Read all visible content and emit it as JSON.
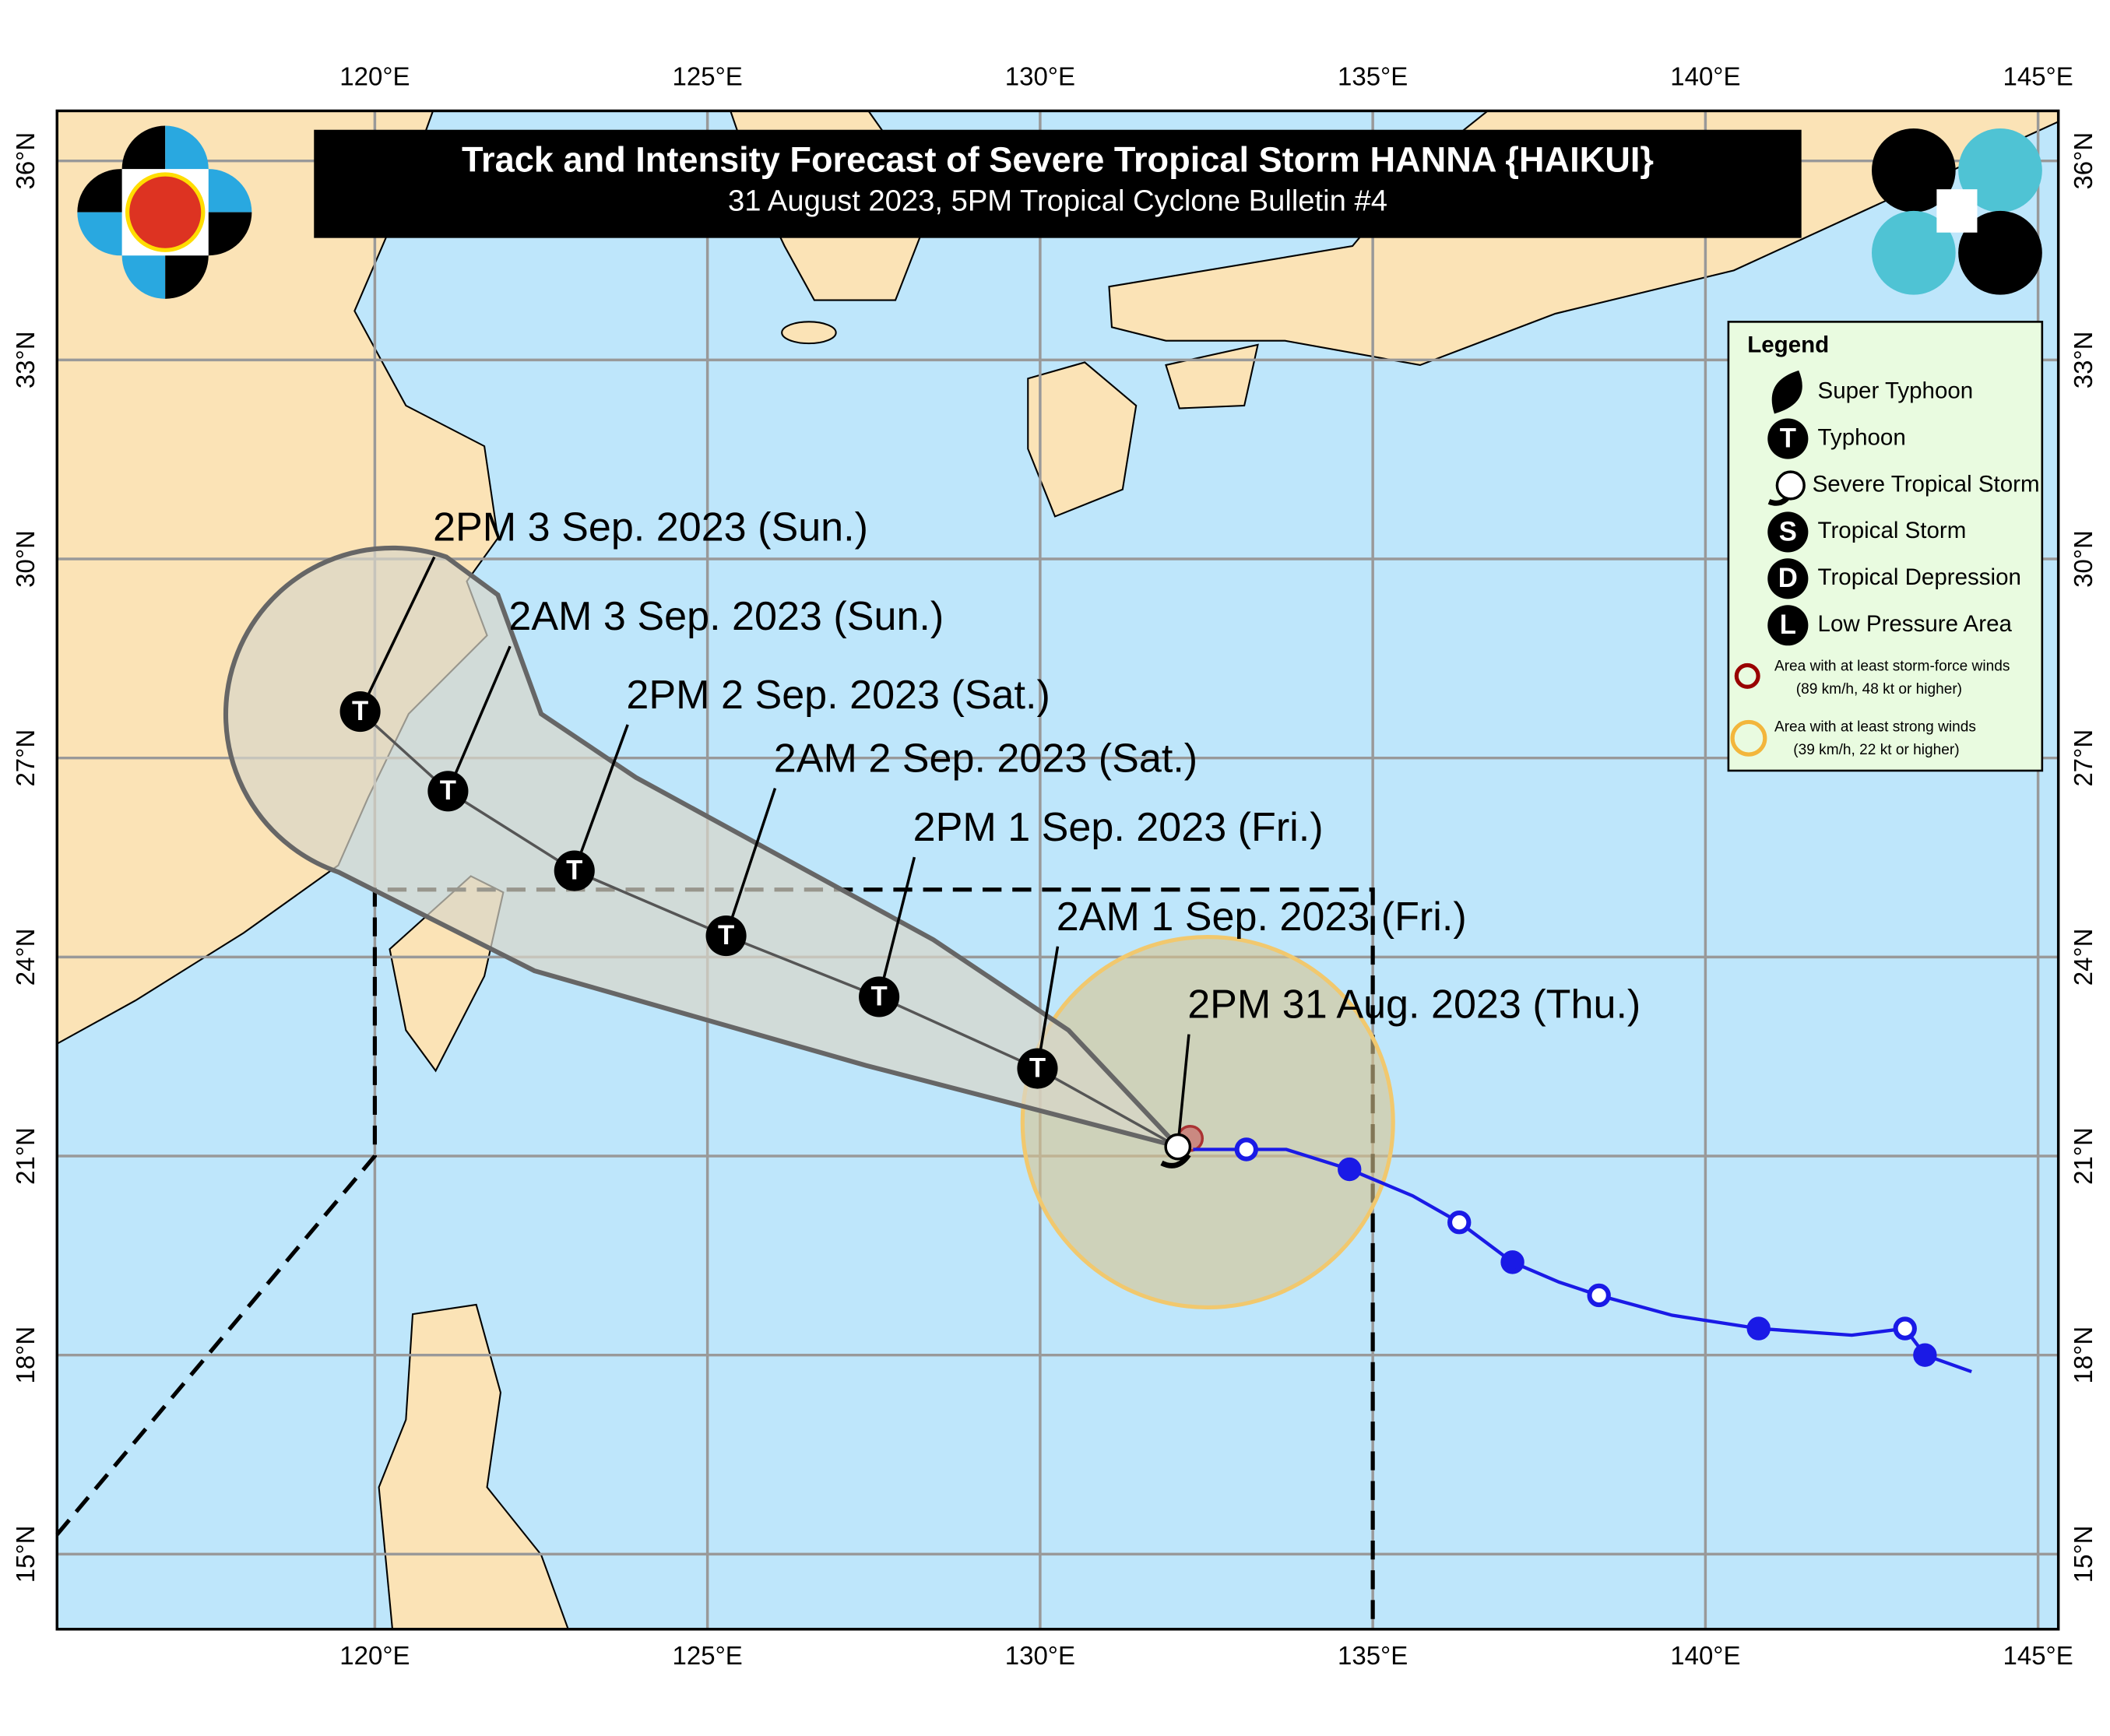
{
  "header": {
    "title": "Track and Intensity Forecast of Severe Tropical Storm HANNA {HAIKUI}",
    "subtitle": "31 August 2023, 5PM Tropical Cyclone Bulletin #4"
  },
  "map": {
    "lon_ticks": [
      {
        "value": 120,
        "label": "120°E"
      },
      {
        "value": 125,
        "label": "125°E"
      },
      {
        "value": 130,
        "label": "130°E"
      },
      {
        "value": 135,
        "label": "135°E"
      },
      {
        "value": 140,
        "label": "140°E"
      },
      {
        "value": 145,
        "label": "145°E"
      }
    ],
    "lat_ticks": [
      {
        "value": 36,
        "label": "36°N"
      },
      {
        "value": 33,
        "label": "33°N"
      },
      {
        "value": 30,
        "label": "30°N"
      },
      {
        "value": 27,
        "label": "27°N"
      },
      {
        "value": 24,
        "label": "24°N"
      },
      {
        "value": 21,
        "label": "21°N"
      },
      {
        "value": 18,
        "label": "18°N"
      },
      {
        "value": 15,
        "label": "15°N"
      }
    ],
    "grid": true,
    "forecast": [
      {
        "label": "2PM 31 Aug. 2023 (Thu.)",
        "lon": 132.07,
        "lat": 21.14
      },
      {
        "label": "2AM 1 Sep. 2023 (Fri.)",
        "lon": 129.96,
        "lat": 22.32,
        "symbol": "T"
      },
      {
        "label": "2PM 1 Sep. 2023 (Fri.)",
        "lon": 127.58,
        "lat": 23.4,
        "symbol": "T"
      },
      {
        "label": "2AM 2 Sep. 2023 (Sat.)",
        "lon": 125.28,
        "lat": 24.32,
        "symbol": "T"
      },
      {
        "label": "2PM 2 Sep. 2023 (Sat.)",
        "lon": 123.0,
        "lat": 25.3,
        "symbol": "T"
      },
      {
        "label": "2AM 3 Sep. 2023 (Sun.)",
        "lon": 121.1,
        "lat": 26.5,
        "symbol": "T"
      },
      {
        "label": "2PM 3 Sep. 2023 (Sun.)",
        "lon": 119.78,
        "lat": 27.7,
        "symbol": "T"
      }
    ],
    "past_track": {
      "color": "#1a1ae6",
      "lon": [
        144.0,
        143.3,
        143.0,
        142.2,
        140.8,
        139.5,
        138.4,
        137.8,
        137.1,
        136.3,
        135.6,
        134.65,
        133.7,
        133.1,
        132.3
      ],
      "lat": [
        17.75,
        18.0,
        18.4,
        18.3,
        18.4,
        18.6,
        18.9,
        19.1,
        19.4,
        20.0,
        20.4,
        20.8,
        21.1,
        21.1,
        21.1
      ],
      "points": [
        {
          "lon": 133.1,
          "lat": 21.1,
          "filled": false
        },
        {
          "lon": 134.65,
          "lat": 20.8,
          "filled": true
        },
        {
          "lon": 136.3,
          "lat": 20.0,
          "filled": false
        },
        {
          "lon": 137.1,
          "lat": 19.4,
          "filled": true
        },
        {
          "lon": 138.4,
          "lat": 18.9,
          "filled": false
        },
        {
          "lon": 140.8,
          "lat": 18.4,
          "filled": true
        },
        {
          "lon": 143.0,
          "lat": 18.4,
          "filled": false
        },
        {
          "lon": 143.3,
          "lat": 18.0,
          "filled": true
        }
      ]
    }
  },
  "legend": {
    "title": "Legend",
    "items": [
      {
        "label": "Super Typhoon"
      },
      {
        "label": "Typhoon",
        "symbol": "T"
      },
      {
        "label": "Severe Tropical Storm"
      },
      {
        "label": "Tropical Storm",
        "symbol": "S"
      },
      {
        "label": "Tropical Depression",
        "symbol": "D"
      },
      {
        "label": "Low Pressure Area",
        "symbol": "L"
      }
    ],
    "areas": [
      [
        "Area with at least storm-force winds",
        "(89 km/h, 48 kt or higher)"
      ],
      [
        "Area with at least strong winds",
        "(39 km/h, 22 kt or higher)"
      ]
    ]
  }
}
